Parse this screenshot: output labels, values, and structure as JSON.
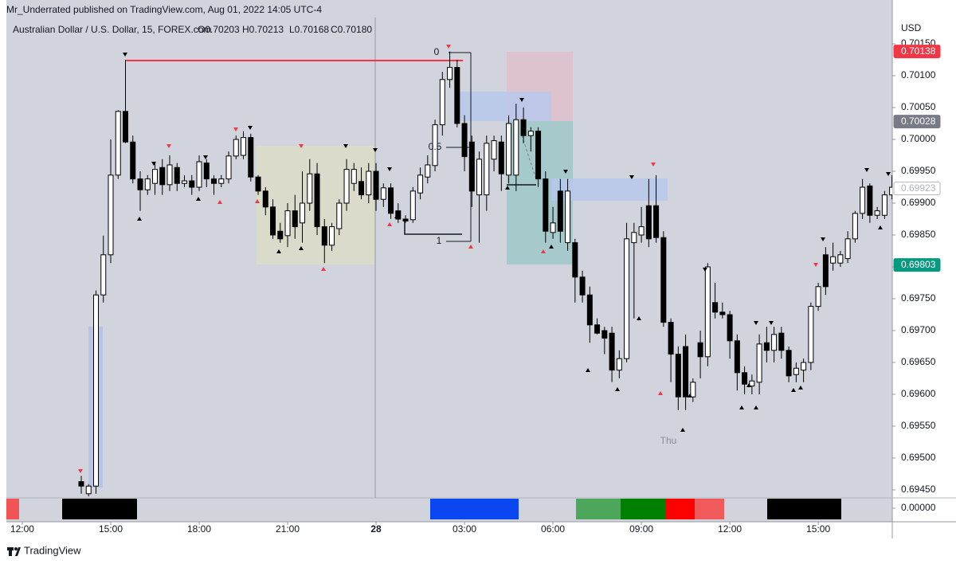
{
  "chart_data": {
    "type": "candlestick",
    "published": "Mr_Underrated published on TradingView.com, Aug 01, 2022 14:05 UTC-4",
    "symbol": "Australian Dollar / U.S. Dollar, 15, FOREX.com",
    "legend_values": [
      "O0.70203",
      "H0.70213",
      "L0.70168",
      "C0.70180"
    ],
    "currency": "USD",
    "footer": "TradingView",
    "day_label": "Thu",
    "fib_labels": [
      "0",
      "0.5",
      "1"
    ],
    "up_color": "#ffffff",
    "down_color": "#000000",
    "grid": false,
    "x": [
      2,
      2.25,
      2.5,
      2.75,
      3,
      3.25,
      3.5,
      3.75,
      4,
      4.25,
      4.5,
      4.75,
      5,
      5.25,
      5.5,
      5.75,
      6,
      6.25,
      6.5,
      6.75,
      7,
      7.25,
      7.5,
      7.75,
      8,
      8.25,
      8.5,
      8.75,
      9,
      9.25,
      9.5,
      9.75,
      10,
      10.25,
      10.5,
      10.75,
      11,
      11.25,
      11.5,
      11.75,
      12,
      12.25,
      12.5,
      12.75,
      13,
      13.25,
      13.5,
      13.75,
      14,
      14.25,
      14.5,
      14.75,
      15,
      15.25,
      15.5,
      15.75,
      16,
      16.25,
      16.5,
      16.75,
      17,
      17.25,
      17.5,
      17.75,
      18,
      18.25,
      18.5,
      18.75,
      19,
      19.25,
      19.5,
      19.75,
      20,
      20.25,
      20.5,
      20.75,
      21,
      21.25,
      21.5,
      21.75,
      22,
      22.25,
      22.5,
      22.75,
      23,
      23.25,
      23.5,
      23.75,
      24,
      24.25,
      24.5,
      24.75,
      25,
      25.25,
      25.5,
      25.75,
      26,
      26.25,
      26.5,
      26.75,
      27,
      27.25,
      27.5,
      27.75,
      28,
      28.25,
      28.5,
      28.75,
      29,
      29.25,
      29.5
    ],
    "open": [
      0.69463,
      0.69444,
      0.69456,
      0.69756,
      0.69819,
      0.69944,
      0.70044,
      0.69996,
      0.69938,
      0.69921,
      0.69931,
      0.69956,
      0.69929,
      0.69956,
      0.69931,
      0.69935,
      0.69925,
      0.69963,
      0.69938,
      0.69931,
      0.69938,
      0.69974,
      0.69975,
      0.70003,
      0.69941,
      0.69919,
      0.69894,
      0.69856,
      0.69849,
      0.69888,
      0.69869,
      0.699,
      0.69946,
      0.69863,
      0.69834,
      0.6986,
      0.699,
      0.69931,
      0.69934,
      0.69913,
      0.6995,
      0.69906,
      0.69924,
      0.69888,
      0.69875,
      0.69874,
      0.69916,
      0.69941,
      0.69959,
      0.70023,
      0.70094,
      0.70113,
      0.70025,
      0.69996,
      0.69913,
      0.69913,
      0.69969,
      0.69996,
      0.69944,
      0.69944,
      0.70031,
      0.70006,
      0.70013,
      0.69938,
      0.69854,
      0.69919,
      0.69838,
      0.69838,
      0.69784,
      0.69756,
      0.69709,
      0.697,
      0.69696,
      0.69638,
      0.69656,
      0.69838,
      0.6985,
      0.69896,
      0.69896,
      0.69846,
      0.69713,
      0.69663,
      0.69675,
      0.69596,
      0.69681,
      0.69659,
      0.69744,
      0.69729,
      0.69725,
      0.69684,
      0.69634,
      0.69613,
      0.69619,
      0.69681,
      0.69669,
      0.69696,
      0.69669,
      0.69631,
      0.69638,
      0.6965,
      0.69738,
      0.69819,
      0.69806,
      0.69806,
      0.69813,
      0.69844,
      0.69884,
      0.69927,
      0.69881,
      0.69881,
      0.69913
    ],
    "high": [
      0.69472,
      0.69459,
      0.69763,
      0.69849,
      0.7,
      0.70046,
      0.70125,
      0.70006,
      0.6995,
      0.69944,
      0.69963,
      0.69969,
      0.69975,
      0.69963,
      0.69944,
      0.69944,
      0.69975,
      0.69969,
      0.69944,
      0.69944,
      0.69981,
      0.70006,
      0.70013,
      0.70009,
      0.69944,
      0.69925,
      0.69906,
      0.69869,
      0.699,
      0.69913,
      0.6995,
      0.69969,
      0.69963,
      0.69875,
      0.69869,
      0.69906,
      0.69969,
      0.69963,
      0.69956,
      0.69963,
      0.69963,
      0.69931,
      0.69931,
      0.699,
      0.69881,
      0.69925,
      0.69956,
      0.69975,
      0.70031,
      0.70106,
      0.70138,
      0.70125,
      0.70038,
      0.70006,
      0.69981,
      0.70006,
      0.70006,
      0.70006,
      0.70038,
      0.70056,
      0.7005,
      0.70019,
      0.70019,
      0.6995,
      0.69894,
      0.69938,
      0.69938,
      0.69844,
      0.69794,
      0.69769,
      0.69719,
      0.69706,
      0.69706,
      0.69669,
      0.69869,
      0.69869,
      0.69894,
      0.69938,
      0.69944,
      0.69856,
      0.69719,
      0.69675,
      0.69694,
      0.69625,
      0.697,
      0.69806,
      0.69775,
      0.69744,
      0.69731,
      0.69694,
      0.69644,
      0.69631,
      0.69694,
      0.69706,
      0.69706,
      0.69706,
      0.69675,
      0.6965,
      0.69656,
      0.69744,
      0.69775,
      0.69831,
      0.69838,
      0.69825,
      0.69856,
      0.69888,
      0.69938,
      0.69931,
      0.69894,
      0.69919,
      0.69944
    ],
    "low": [
      0.69444,
      0.6944,
      0.69444,
      0.69744,
      0.69806,
      0.69938,
      0.69994,
      0.69931,
      0.69888,
      0.69913,
      0.69913,
      0.69913,
      0.69919,
      0.69919,
      0.69925,
      0.69913,
      0.69919,
      0.69925,
      0.69913,
      0.69925,
      0.69931,
      0.69969,
      0.69969,
      0.69934,
      0.69913,
      0.69881,
      0.69844,
      0.69838,
      0.69831,
      0.69844,
      0.69838,
      0.69888,
      0.6985,
      0.69806,
      0.69825,
      0.6985,
      0.69888,
      0.69919,
      0.69906,
      0.699,
      0.69888,
      0.69894,
      0.69875,
      0.69869,
      0.69869,
      0.69869,
      0.69906,
      0.69931,
      0.6995,
      0.70006,
      0.70081,
      0.70019,
      0.6995,
      0.69894,
      0.69838,
      0.69888,
      0.6995,
      0.69919,
      0.69931,
      0.69919,
      0.69994,
      0.69981,
      0.69925,
      0.69838,
      0.69844,
      0.69838,
      0.69825,
      0.69744,
      0.69744,
      0.69681,
      0.69694,
      0.69663,
      0.69619,
      0.69625,
      0.6965,
      0.69719,
      0.69838,
      0.69831,
      0.69838,
      0.69706,
      0.69619,
      0.69575,
      0.69575,
      0.69588,
      0.69625,
      0.69644,
      0.69719,
      0.69719,
      0.69656,
      0.69606,
      0.696,
      0.696,
      0.696,
      0.6965,
      0.6965,
      0.69656,
      0.69619,
      0.69619,
      0.69619,
      0.69638,
      0.69731,
      0.69756,
      0.69794,
      0.698,
      0.69806,
      0.69838,
      0.69875,
      0.69869,
      0.69875,
      0.69875,
      0.69906
    ],
    "close": [
      0.69456,
      0.69456,
      0.69756,
      0.69819,
      0.69944,
      0.70044,
      0.69996,
      0.69938,
      0.69921,
      0.69938,
      0.69953,
      0.69929,
      0.6996,
      0.69931,
      0.69935,
      0.69925,
      0.69965,
      0.69938,
      0.69931,
      0.69938,
      0.69974,
      0.7,
      0.70003,
      0.69941,
      0.69919,
      0.69894,
      0.6985,
      0.69844,
      0.69888,
      0.69863,
      0.699,
      0.69946,
      0.69863,
      0.69834,
      0.69863,
      0.699,
      0.69953,
      0.69953,
      0.69913,
      0.6995,
      0.69906,
      0.69924,
      0.69884,
      0.69875,
      0.69872,
      0.69919,
      0.69944,
      0.6996,
      0.70023,
      0.70094,
      0.70113,
      0.70025,
      0.69973,
      0.69919,
      0.69969,
      0.69994,
      0.69998,
      0.69946,
      0.70025,
      0.70031,
      0.70006,
      0.70013,
      0.69938,
      0.69856,
      0.69869,
      0.69856,
      0.69919,
      0.69784,
      0.69756,
      0.69709,
      0.69696,
      0.69688,
      0.69638,
      0.69656,
      0.69844,
      0.69854,
      0.69863,
      0.69844,
      0.69846,
      0.69713,
      0.69663,
      0.69596,
      0.69596,
      0.69619,
      0.69659,
      0.698,
      0.69729,
      0.69725,
      0.69684,
      0.69634,
      0.69616,
      0.69621,
      0.69679,
      0.69669,
      0.69694,
      0.69669,
      0.69629,
      0.69641,
      0.6965,
      0.69738,
      0.69769,
      0.69769,
      0.69816,
      0.69819,
      0.69844,
      0.69884,
      0.69925,
      0.69881,
      0.69888,
      0.69913,
      0.69925
    ],
    "xlim": [
      -0.54,
      29.51
    ],
    "xticks": [
      {
        "value": 0,
        "label": "12:00"
      },
      {
        "value": 3,
        "label": "15:00"
      },
      {
        "value": 6,
        "label": "18:00"
      },
      {
        "value": 9,
        "label": "21:00"
      },
      {
        "value": 12,
        "label": "28",
        "bold": true
      },
      {
        "value": 15,
        "label": "03:00"
      },
      {
        "value": 18,
        "label": "06:00"
      },
      {
        "value": 21,
        "label": "09:00"
      },
      {
        "value": 24,
        "label": "12:00"
      },
      {
        "value": 27,
        "label": "15:00"
      }
    ],
    "ylim": [
      0.694375,
      0.701913
    ],
    "yticks": [
      {
        "value": 0.6945,
        "label": "0.69450"
      },
      {
        "value": 0.695,
        "label": "0.69500"
      },
      {
        "value": 0.6955,
        "label": "0.69550"
      },
      {
        "value": 0.696,
        "label": "0.69600"
      },
      {
        "value": 0.6965,
        "label": "0.69650"
      },
      {
        "value": 0.697,
        "label": "0.69700"
      },
      {
        "value": 0.6975,
        "label": "0.69750"
      },
      {
        "value": 0.698,
        "label": "0.69800"
      },
      {
        "value": 0.6985,
        "label": "0.69850"
      },
      {
        "value": 0.699,
        "label": "0.69900"
      },
      {
        "value": 0.6995,
        "label": "0.69950"
      },
      {
        "value": 0.7,
        "label": "0.70000"
      },
      {
        "value": 0.7005,
        "label": "0.70050"
      },
      {
        "value": 0.701,
        "label": "0.70100"
      },
      {
        "value": 0.7015,
        "label": "0.70150"
      }
    ],
    "price_badges": [
      {
        "value": 0.70138,
        "color": "#f23645",
        "text_color": "#ffffff"
      },
      {
        "value": 0.70028,
        "color": "#787b86",
        "text_color": "#ffffff"
      },
      {
        "value": 0.69923,
        "color": "#ffffff",
        "text_color": "#b2b5be"
      },
      {
        "value": 0.69803,
        "color": "#089981",
        "text_color": "#ffffff"
      }
    ],
    "lower_pane": {
      "yticks": [
        {
          "value": 0,
          "label": "0.00000"
        }
      ]
    }
  }
}
